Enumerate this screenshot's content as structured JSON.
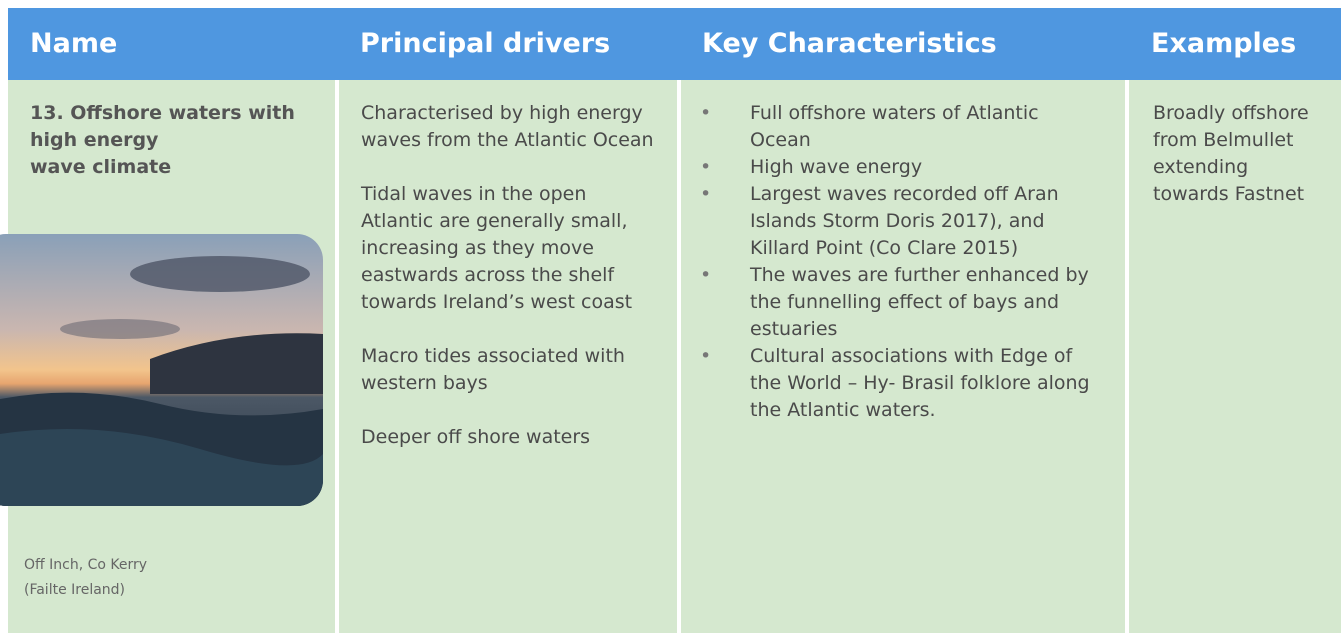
{
  "table": {
    "headers": [
      "Name",
      "Principal drivers",
      "Key Characteristics",
      "Examples"
    ],
    "name_lines": [
      "13. Offshore waters with",
      "high energy",
      "wave climate"
    ],
    "caption_lines": [
      "Off Inch, Co Kerry",
      "(Failte Ireland)"
    ],
    "drivers": [
      "Characterised by high energy waves from the Atlantic Ocean",
      "Tidal waves in the open Atlantic are generally small, increasing as they move eastwards across the shelf towards Ireland’s west coast",
      "Macro tides associated with western bays",
      "Deeper off shore waters"
    ],
    "characteristics": [
      "Full offshore waters of Atlantic Ocean",
      "High wave energy",
      "Largest waves recorded off Aran Islands Storm Doris 2017), and Killard Point (Co Clare 2015)",
      "The waves are further enhanced by the funnelling effect of bays and estuaries",
      "Cultural associations with Edge of the World – Hy- Brasil folklore along the Atlantic waters."
    ],
    "examples": "Broadly offshore from Belmullet extending towards Fastnet"
  }
}
